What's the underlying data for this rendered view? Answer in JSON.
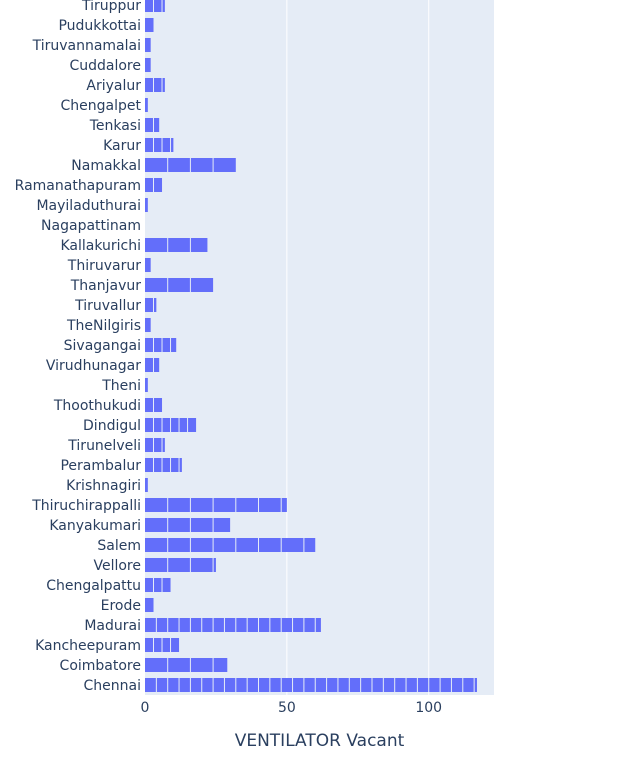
{
  "chart_data": {
    "type": "bar",
    "orientation": "horizontal",
    "bar_color": "#636efa",
    "plot_background": "#e5ecf6",
    "grid": true,
    "xlabel": "VENTILATOR Vacant",
    "ylabel": "",
    "xlim": [
      0,
      123
    ],
    "x_ticks": [
      0,
      50,
      100
    ],
    "categories": [
      "Tiruppur",
      "Pudukkottai",
      "Tiruvannamalai",
      "Cuddalore",
      "Ariyalur",
      "Chengalpet",
      "Tenkasi",
      "Karur",
      "Namakkal",
      "Ramanathapuram",
      "Mayiladuthurai",
      "Nagapattinam",
      "Kallakurichi",
      "Thiruvarur",
      "Thanjavur",
      "Tiruvallur",
      "TheNilgiris",
      "Sivagangai",
      "Virudhunagar",
      "Theni",
      "Thoothukudi",
      "Dindigul",
      "Tirunelveli",
      "Perambalur",
      "Krishnagiri",
      "Thiruchirappalli",
      "Kanyakumari",
      "Salem",
      "Vellore",
      "Chengalpattu",
      "Erode",
      "Madurai",
      "Kancheepuram",
      "Coimbatore",
      "Chennai"
    ],
    "values": [
      7,
      3,
      2,
      2,
      7,
      1,
      5,
      10,
      32,
      6,
      1,
      0,
      22,
      2,
      24,
      4,
      2,
      11,
      5,
      1,
      6,
      18,
      7,
      13,
      1,
      50,
      30,
      60,
      25,
      9,
      3,
      62,
      12,
      29,
      117
    ]
  }
}
